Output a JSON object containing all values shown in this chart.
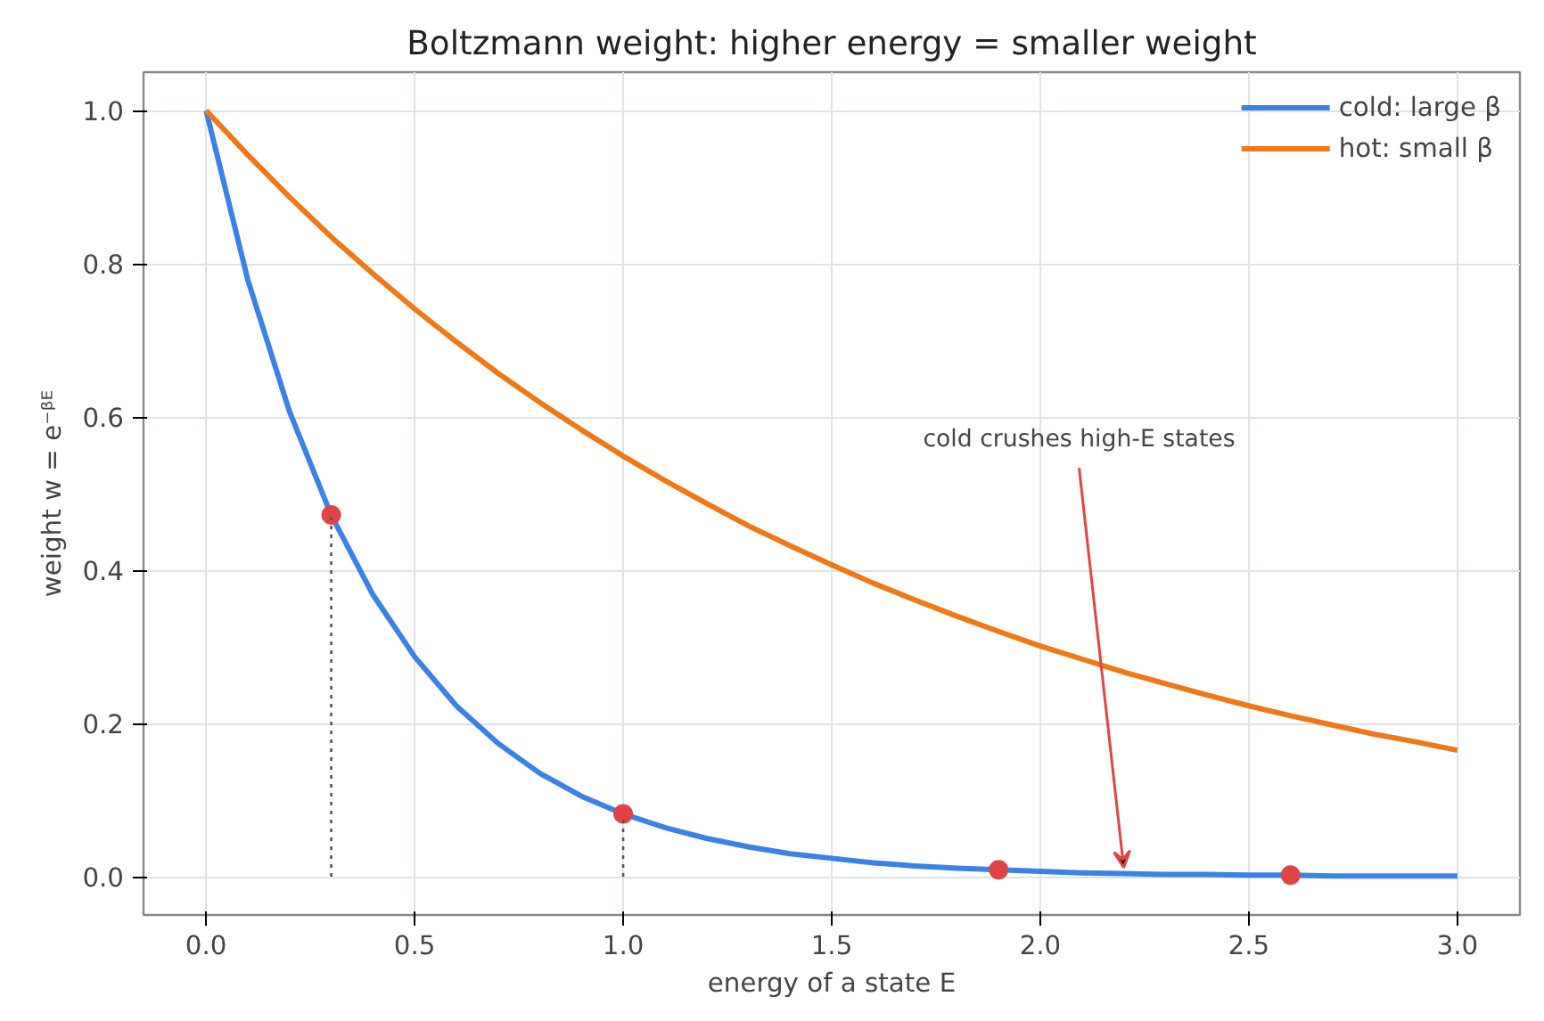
{
  "chart_data": {
    "type": "line",
    "title": "Boltzmann weight: higher energy = smaller weight",
    "xlabel": "energy of a state E",
    "ylabel": "weight w = e⁻ᵝᴱ",
    "xlim": [
      -0.15,
      3.15
    ],
    "ylim": [
      -0.05,
      1.05
    ],
    "xticks": [
      {
        "value": 0,
        "label": "0.0"
      },
      0.5,
      {
        "value": 1,
        "label": "1.0"
      },
      1.5,
      {
        "value": 2,
        "label": "2.0"
      },
      2.5,
      {
        "value": 3,
        "label": "3.0"
      }
    ],
    "yticks": [
      {
        "value": 0,
        "label": "0.0"
      },
      0.2,
      0.4,
      0.6,
      0.8,
      {
        "value": 1,
        "label": "1.0"
      }
    ],
    "grid": true,
    "legend": "top right",
    "marker": "none",
    "line_style": "solid",
    "x": [
      0,
      0.1,
      0.2,
      0.3,
      0.4,
      0.5,
      0.6,
      0.7,
      0.8,
      0.9,
      1.0,
      1.1,
      1.2,
      1.3,
      1.4,
      1.5,
      1.6,
      1.7,
      1.8,
      1.9,
      2.0,
      2.1,
      2.2,
      2.3,
      2.4,
      2.5,
      2.6,
      2.7,
      2.8,
      2.9,
      3.0
    ],
    "series": [
      {
        "name": "cold: large β",
        "color": "#3b82e6",
        "values": [
          1.0,
          0.779,
          0.607,
          0.472,
          0.368,
          0.287,
          0.223,
          0.174,
          0.135,
          0.105,
          0.082,
          0.064,
          0.05,
          0.039,
          0.03,
          0.024,
          0.018,
          0.014,
          0.011,
          0.009,
          0.007,
          0.005,
          0.004,
          0.003,
          0.003,
          0.002,
          0.002,
          0.001,
          0.001,
          0.001,
          0.001
        ]
      },
      {
        "name": "hot: small β",
        "color": "#f07818",
        "values": [
          1.0,
          0.942,
          0.887,
          0.835,
          0.787,
          0.741,
          0.698,
          0.657,
          0.619,
          0.583,
          0.549,
          0.517,
          0.487,
          0.458,
          0.432,
          0.407,
          0.383,
          0.361,
          0.34,
          0.32,
          0.301,
          0.284,
          0.267,
          0.252,
          0.237,
          0.223,
          0.21,
          0.198,
          0.186,
          0.176,
          0.165
        ]
      },
      {
        "type": "scatter",
        "marker": "circle",
        "color": "#e04444",
        "x": [
          0.3,
          1.0,
          1.9,
          2.6
        ],
        "values": [
          0.472,
          0.082,
          0.009,
          0.002
        ]
      },
      {
        "type": "line",
        "line_style": "dotted",
        "color": "#555555",
        "x": [
          0.3,
          0.3
        ],
        "values": [
          0.0,
          0.472
        ]
      },
      {
        "type": "line",
        "line_style": "dotted",
        "color": "#555555",
        "x": [
          1.0,
          1.0
        ],
        "values": [
          0.0,
          0.082
        ]
      }
    ],
    "annotations": [
      {
        "text": "cold crushes high-E states",
        "x": 2.2,
        "y": 0.012
      }
    ]
  }
}
